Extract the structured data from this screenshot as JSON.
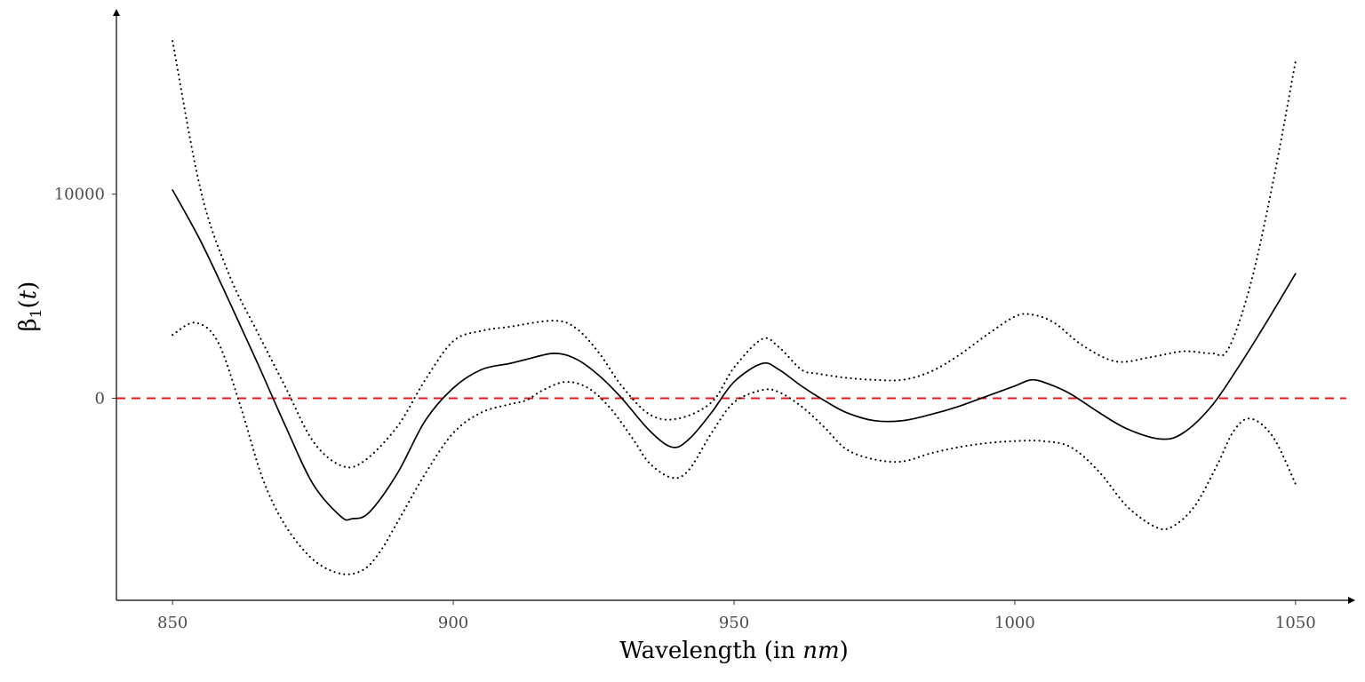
{
  "chart_data": {
    "type": "line",
    "xlabel": "Wavelength (in nm)",
    "xlabel_parts": {
      "prefix": "Wavelength (in ",
      "unit": "nm",
      "suffix": ")"
    },
    "ylabel": "β1(t)",
    "ylabel_parts": {
      "symbol": "β",
      "subscript": "1",
      "open": "(",
      "arg": "t",
      "close": ")"
    },
    "xlim": [
      840,
      1060
    ],
    "ylim": [
      -9900,
      18900
    ],
    "x_ticks": [
      850,
      900,
      950,
      1000,
      1050
    ],
    "x_tick_labels": [
      "850",
      "900",
      "950",
      "1000",
      "1050"
    ],
    "y_ticks": [
      0,
      10000
    ],
    "y_tick_labels": [
      "0",
      "10000"
    ],
    "grid": false,
    "reference_line": {
      "y": 0,
      "style": "dashed",
      "color": "#e41a1c"
    },
    "series": [
      {
        "role": "estimate",
        "style": "solid",
        "color": "#000000",
        "x": [
          850,
          855,
          860,
          865,
          870,
          875,
          880,
          882,
          885,
          890,
          895,
          900,
          905,
          910,
          913,
          918,
          922,
          926,
          930,
          935,
          939,
          942,
          946,
          950,
          955,
          958,
          962,
          966,
          970,
          975,
          980,
          985,
          990,
          995,
          1000,
          1003,
          1006,
          1010,
          1015,
          1020,
          1026,
          1030,
          1035,
          1040,
          1045,
          1050
        ],
        "y": [
          10200,
          7700,
          4800,
          1800,
          -1300,
          -4200,
          -5800,
          -5900,
          -5600,
          -3700,
          -1100,
          500,
          1400,
          1700,
          1900,
          2200,
          1900,
          1100,
          0,
          -1600,
          -2400,
          -2000,
          -700,
          800,
          1700,
          1400,
          600,
          -100,
          -700,
          -1100,
          -1100,
          -800,
          -400,
          100,
          600,
          900,
          700,
          200,
          -700,
          -1500,
          -2000,
          -1700,
          -400,
          1600,
          3800,
          6100
        ]
      },
      {
        "role": "upper_band",
        "style": "dotted",
        "color": "#000000",
        "x": [
          850,
          855,
          860,
          865,
          870,
          875,
          880,
          884,
          890,
          895,
          900,
          905,
          910,
          918,
          922,
          926,
          930,
          935,
          940,
          946,
          950,
          955,
          958,
          962,
          965,
          970,
          975,
          980,
          985,
          990,
          995,
          1000,
          1003,
          1007,
          1012,
          1018,
          1024,
          1030,
          1035,
          1038,
          1042,
          1046,
          1050
        ],
        "y": [
          17500,
          10200,
          6100,
          3300,
          600,
          -2100,
          -3300,
          -3100,
          -1400,
          900,
          2800,
          3300,
          3500,
          3800,
          3400,
          2200,
          600,
          -800,
          -1000,
          -200,
          1500,
          2900,
          2500,
          1400,
          1200,
          1000,
          900,
          900,
          1300,
          2100,
          3100,
          4000,
          4100,
          3700,
          2600,
          1800,
          2000,
          2300,
          2200,
          2400,
          5600,
          10600,
          16500
        ]
      },
      {
        "role": "lower_band",
        "style": "dotted",
        "color": "#000000",
        "x": [
          850,
          854,
          858,
          862,
          866,
          870,
          875,
          880,
          884,
          887,
          890,
          895,
          900,
          905,
          910,
          913,
          916,
          920,
          924,
          928,
          932,
          935,
          939,
          942,
          946,
          950,
          955,
          958,
          962,
          966,
          970,
          975,
          980,
          985,
          990,
          995,
          1000,
          1005,
          1010,
          1015,
          1020,
          1025,
          1028,
          1032,
          1036,
          1039,
          1042,
          1046,
          1050
        ],
        "y": [
          3100,
          3700,
          2800,
          -300,
          -3900,
          -6200,
          -7900,
          -8600,
          -8400,
          -7500,
          -6100,
          -3700,
          -1700,
          -700,
          -300,
          -100,
          400,
          800,
          500,
          -500,
          -2000,
          -3200,
          -3900,
          -3500,
          -1700,
          -200,
          400,
          300,
          -400,
          -1400,
          -2500,
          -3000,
          -3100,
          -2700,
          -2400,
          -2200,
          -2100,
          -2100,
          -2400,
          -3600,
          -5300,
          -6300,
          -6300,
          -5300,
          -3300,
          -1600,
          -1000,
          -1900,
          -4200
        ]
      }
    ]
  }
}
